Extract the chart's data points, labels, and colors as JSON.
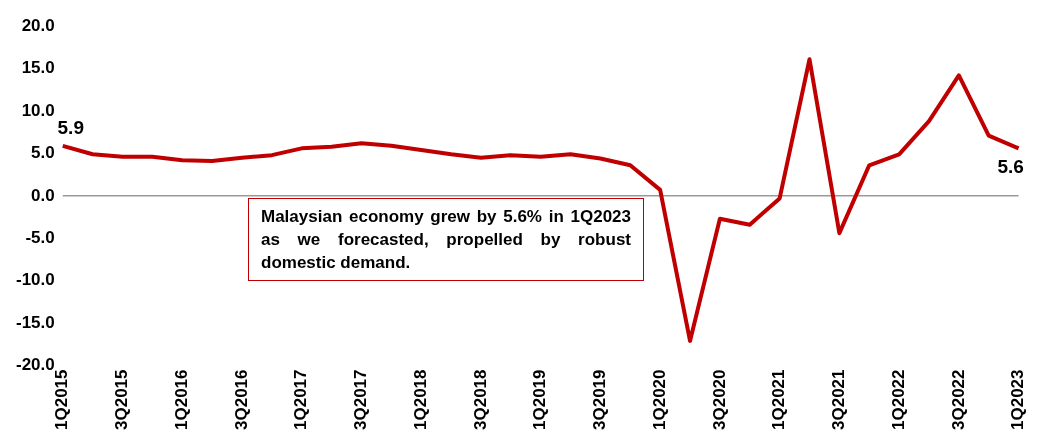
{
  "chart_data": {
    "type": "line",
    "categories": [
      "1Q2015",
      null,
      "3Q2015",
      null,
      "1Q2016",
      null,
      "3Q2016",
      null,
      "1Q2017",
      null,
      "3Q2017",
      null,
      "1Q2018",
      null,
      "3Q2018",
      null,
      "1Q2019",
      null,
      "3Q2019",
      null,
      "1Q2020",
      null,
      "3Q2020",
      null,
      "1Q2021",
      null,
      "3Q2021",
      null,
      "1Q2022",
      null,
      "3Q2022",
      null,
      "1Q2023"
    ],
    "series": [
      {
        "color": "#c00000",
        "values": [
          5.9,
          4.9,
          4.6,
          4.6,
          4.2,
          4.1,
          4.5,
          4.8,
          5.6,
          5.8,
          6.2,
          5.9,
          5.4,
          4.9,
          4.5,
          4.8,
          4.6,
          4.9,
          4.4,
          3.6,
          0.7,
          -17.1,
          -2.7,
          -3.4,
          -0.3,
          16.1,
          -4.4,
          3.6,
          4.9,
          8.8,
          14.2,
          7.1,
          5.6
        ],
        "value_labels": [
          "5.9",
          null,
          null,
          null,
          null,
          null,
          null,
          null,
          null,
          null,
          null,
          null,
          null,
          null,
          null,
          null,
          null,
          null,
          null,
          null,
          null,
          null,
          null,
          null,
          null,
          null,
          null,
          null,
          null,
          null,
          null,
          null,
          "5.6"
        ]
      }
    ],
    "ylim": [
      -20,
      20
    ],
    "yticks": [
      {
        "value": -20,
        "label": "-20.0"
      },
      {
        "value": -15,
        "label": "-15.0"
      },
      {
        "value": -10,
        "label": "-10.0"
      },
      {
        "value": -5,
        "label": "-5.0"
      },
      {
        "value": 0,
        "label": "0.0"
      },
      {
        "value": 5,
        "label": "5.0"
      },
      {
        "value": 10,
        "label": "10.0"
      },
      {
        "value": 15,
        "label": "15.0"
      },
      {
        "value": 20,
        "label": "20.0"
      }
    ],
    "ref_lines": [
      {
        "axis": "y",
        "value": 0,
        "color": "#999999"
      }
    ],
    "grid": false,
    "legend": false,
    "marker": "none",
    "line_style": "solid",
    "annotations": [
      "Malaysian economy grew by 5.6% in 1Q2023 as we forecasted, propelled by robust domestic demand."
    ]
  }
}
